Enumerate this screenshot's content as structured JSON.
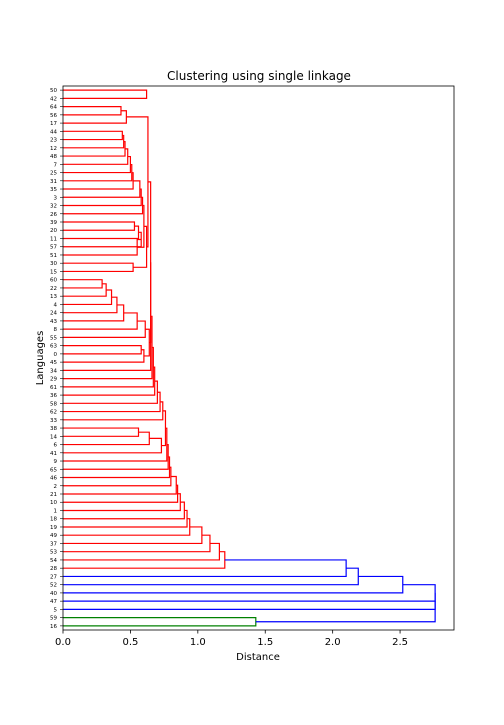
{
  "chart_data": {
    "type": "dendrogram",
    "orientation": "horizontal",
    "title": "Clustering using single linkage",
    "xlabel": "Distance",
    "ylabel": "Languages",
    "xlim": [
      0,
      2.9
    ],
    "xticks": [
      0.0,
      0.5,
      1.0,
      1.5,
      2.0,
      2.5
    ],
    "xtick_labels": [
      "0.0",
      "0.5",
      "1.0",
      "1.5",
      "2.0",
      "2.5"
    ],
    "grid": false,
    "leaves": [
      "50",
      "42",
      "64",
      "56",
      "17",
      "44",
      "23",
      "12",
      "48",
      "7",
      "25",
      "31",
      "35",
      "3",
      "32",
      "26",
      "39",
      "20",
      "11",
      "57",
      "51",
      "30",
      "15",
      "60",
      "22",
      "13",
      "4",
      "24",
      "43",
      "8",
      "55",
      "63",
      "0",
      "45",
      "34",
      "29",
      "61",
      "36",
      "58",
      "62",
      "33",
      "38",
      "14",
      "6",
      "41",
      "9",
      "65",
      "46",
      "2",
      "21",
      "10",
      "1",
      "18",
      "19",
      "49",
      "37",
      "53",
      "54",
      "28",
      "27",
      "52",
      "40",
      "47",
      "5",
      "59",
      "16"
    ],
    "merges": [
      {
        "a": "L:50",
        "b": "L:42",
        "height": 0.62
      },
      {
        "a": "L:64",
        "b": "L:56",
        "height": 0.43
      },
      {
        "a": "M:1",
        "b": "L:17",
        "height": 0.47
      },
      {
        "a": "L:44",
        "b": "L:23",
        "height": 0.44
      },
      {
        "a": "M:3",
        "b": "L:12",
        "height": 0.45
      },
      {
        "a": "M:4",
        "b": "L:48",
        "height": 0.46
      },
      {
        "a": "M:5",
        "b": "L:7",
        "height": 0.48
      },
      {
        "a": "M:6",
        "b": "L:25",
        "height": 0.5
      },
      {
        "a": "M:7",
        "b": "L:31",
        "height": 0.51
      },
      {
        "a": "M:8",
        "b": "L:35",
        "height": 0.52
      },
      {
        "a": "M:9",
        "b": "L:3",
        "height": 0.57
      },
      {
        "a": "M:10",
        "b": "L:32",
        "height": 0.58
      },
      {
        "a": "L:39",
        "b": "L:20",
        "height": 0.53
      },
      {
        "a": "M:12",
        "b": "L:11",
        "height": 0.56
      },
      {
        "a": "M:13",
        "b": "L:57",
        "height": 0.58
      },
      {
        "a": "M:14",
        "b": "L:51",
        "height": 0.55
      },
      {
        "a": "M:11",
        "b": "L:26",
        "height": 0.59
      },
      {
        "a": "M:16",
        "b": "M:15",
        "height": 0.6
      },
      {
        "a": "L:30",
        "b": "L:15",
        "height": 0.52
      },
      {
        "a": "M:17",
        "b": "M:18",
        "height": 0.62
      },
      {
        "a": "M:2",
        "b": "M:19",
        "height": 0.63
      },
      {
        "a": "L:60",
        "b": "L:22",
        "height": 0.29
      },
      {
        "a": "M:21",
        "b": "L:13",
        "height": 0.32
      },
      {
        "a": "M:22",
        "b": "L:4",
        "height": 0.36
      },
      {
        "a": "M:23",
        "b": "L:24",
        "height": 0.4
      },
      {
        "a": "M:24",
        "b": "L:43",
        "height": 0.45
      },
      {
        "a": "M:25",
        "b": "L:8",
        "height": 0.55
      },
      {
        "a": "M:26",
        "b": "L:55",
        "height": 0.61
      },
      {
        "a": "L:63",
        "b": "L:0",
        "height": 0.58
      },
      {
        "a": "M:28",
        "b": "L:45",
        "height": 0.6
      },
      {
        "a": "M:27",
        "b": "M:29",
        "height": 0.64
      },
      {
        "a": "M:20",
        "b": "M:30",
        "height": 0.65
      },
      {
        "a": "M:31",
        "b": "L:34",
        "height": 0.65
      },
      {
        "a": "M:32",
        "b": "L:29",
        "height": 0.66
      },
      {
        "a": "M:33",
        "b": "L:61",
        "height": 0.67
      },
      {
        "a": "M:34",
        "b": "L:36",
        "height": 0.68
      },
      {
        "a": "M:35",
        "b": "L:58",
        "height": 0.7
      },
      {
        "a": "M:36",
        "b": "L:62",
        "height": 0.72
      },
      {
        "a": "L:38",
        "b": "L:14",
        "height": 0.56
      },
      {
        "a": "M:38",
        "b": "L:6",
        "height": 0.64
      },
      {
        "a": "M:39",
        "b": "L:41",
        "height": 0.73
      },
      {
        "a": "M:37",
        "b": "L:33",
        "height": 0.74
      },
      {
        "a": "M:41",
        "b": "M:40",
        "height": 0.76
      },
      {
        "a": "M:42",
        "b": "L:9",
        "height": 0.77
      },
      {
        "a": "M:43",
        "b": "L:65",
        "height": 0.78
      },
      {
        "a": "M:44",
        "b": "L:46",
        "height": 0.79
      },
      {
        "a": "M:45",
        "b": "L:2",
        "height": 0.8
      },
      {
        "a": "M:46",
        "b": "L:21",
        "height": 0.84
      },
      {
        "a": "M:47",
        "b": "L:10",
        "height": 0.85
      },
      {
        "a": "M:48",
        "b": "L:1",
        "height": 0.87
      },
      {
        "a": "M:49",
        "b": "L:18",
        "height": 0.9
      },
      {
        "a": "M:50",
        "b": "L:19",
        "height": 0.92
      },
      {
        "a": "M:51",
        "b": "L:49",
        "height": 0.94
      },
      {
        "a": "M:52",
        "b": "L:37",
        "height": 1.03
      },
      {
        "a": "M:53",
        "b": "L:53",
        "height": 1.09
      },
      {
        "a": "M:54",
        "b": "L:54",
        "height": 1.16
      },
      {
        "a": "M:55",
        "b": "L:28",
        "height": 1.2
      },
      {
        "a": "M:56",
        "b": "L:27",
        "height": 2.1
      },
      {
        "a": "M:57",
        "b": "L:52",
        "height": 2.19
      },
      {
        "a": "M:58",
        "b": "L:40",
        "height": 2.52
      },
      {
        "a": "M:59",
        "b": "L:47",
        "height": 2.76
      },
      {
        "a": "L:59",
        "b": "L:16",
        "height": 1.43
      },
      {
        "a": "M:60",
        "b": "L:5",
        "height": 2.76
      },
      {
        "a": "M:62",
        "b": "M:61",
        "height": 2.76
      }
    ],
    "colors": {
      "cluster_red": "#ff0000",
      "cluster_green": "#008000",
      "above_threshold": "#0000ff",
      "axes": "#000000",
      "background": "#ffffff"
    }
  }
}
